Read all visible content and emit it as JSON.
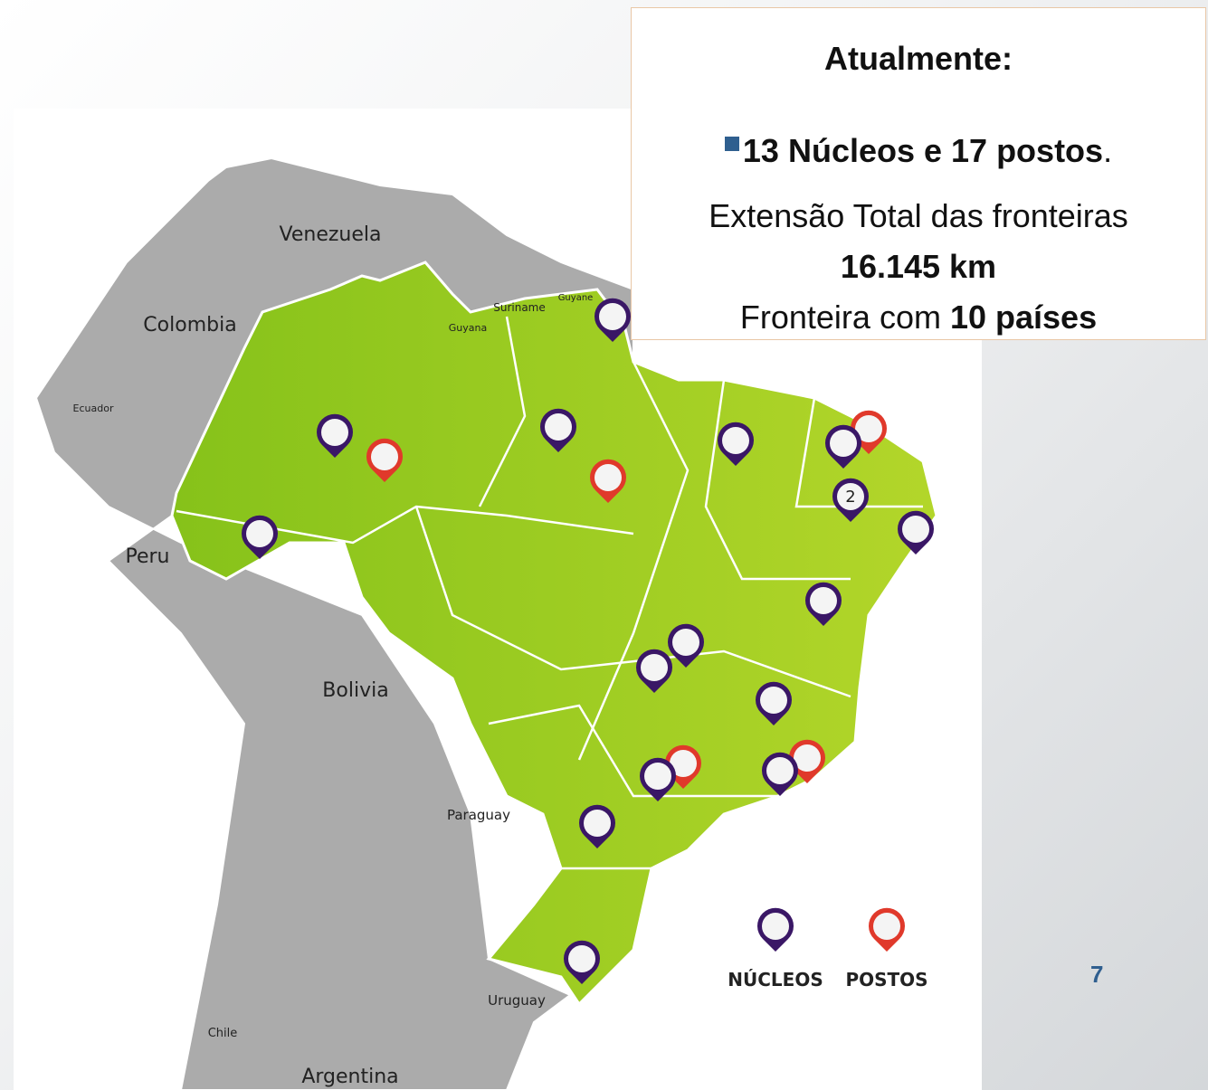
{
  "info_box": {
    "heading": "Atualmente:",
    "bullet_bold": "13 Núcleos e 17 postos",
    "bullet_rest": ".",
    "extension_label": "Extensão Total das fronteiras",
    "extension_value": "16.145 km",
    "border_prefix": "Fronteira com",
    "border_value": "10 países"
  },
  "map": {
    "countries": [
      "Venezuela",
      "Colombia",
      "Ecuador",
      "Guyana",
      "Suriname",
      "Guyane",
      "Peru",
      "Bolivia",
      "Paraguay",
      "Uruguay",
      "Chile",
      "Argentina"
    ],
    "cluster_label": "2"
  },
  "legend": [
    "NÚCLEOS",
    "POSTOS"
  ],
  "page_number": "7"
}
